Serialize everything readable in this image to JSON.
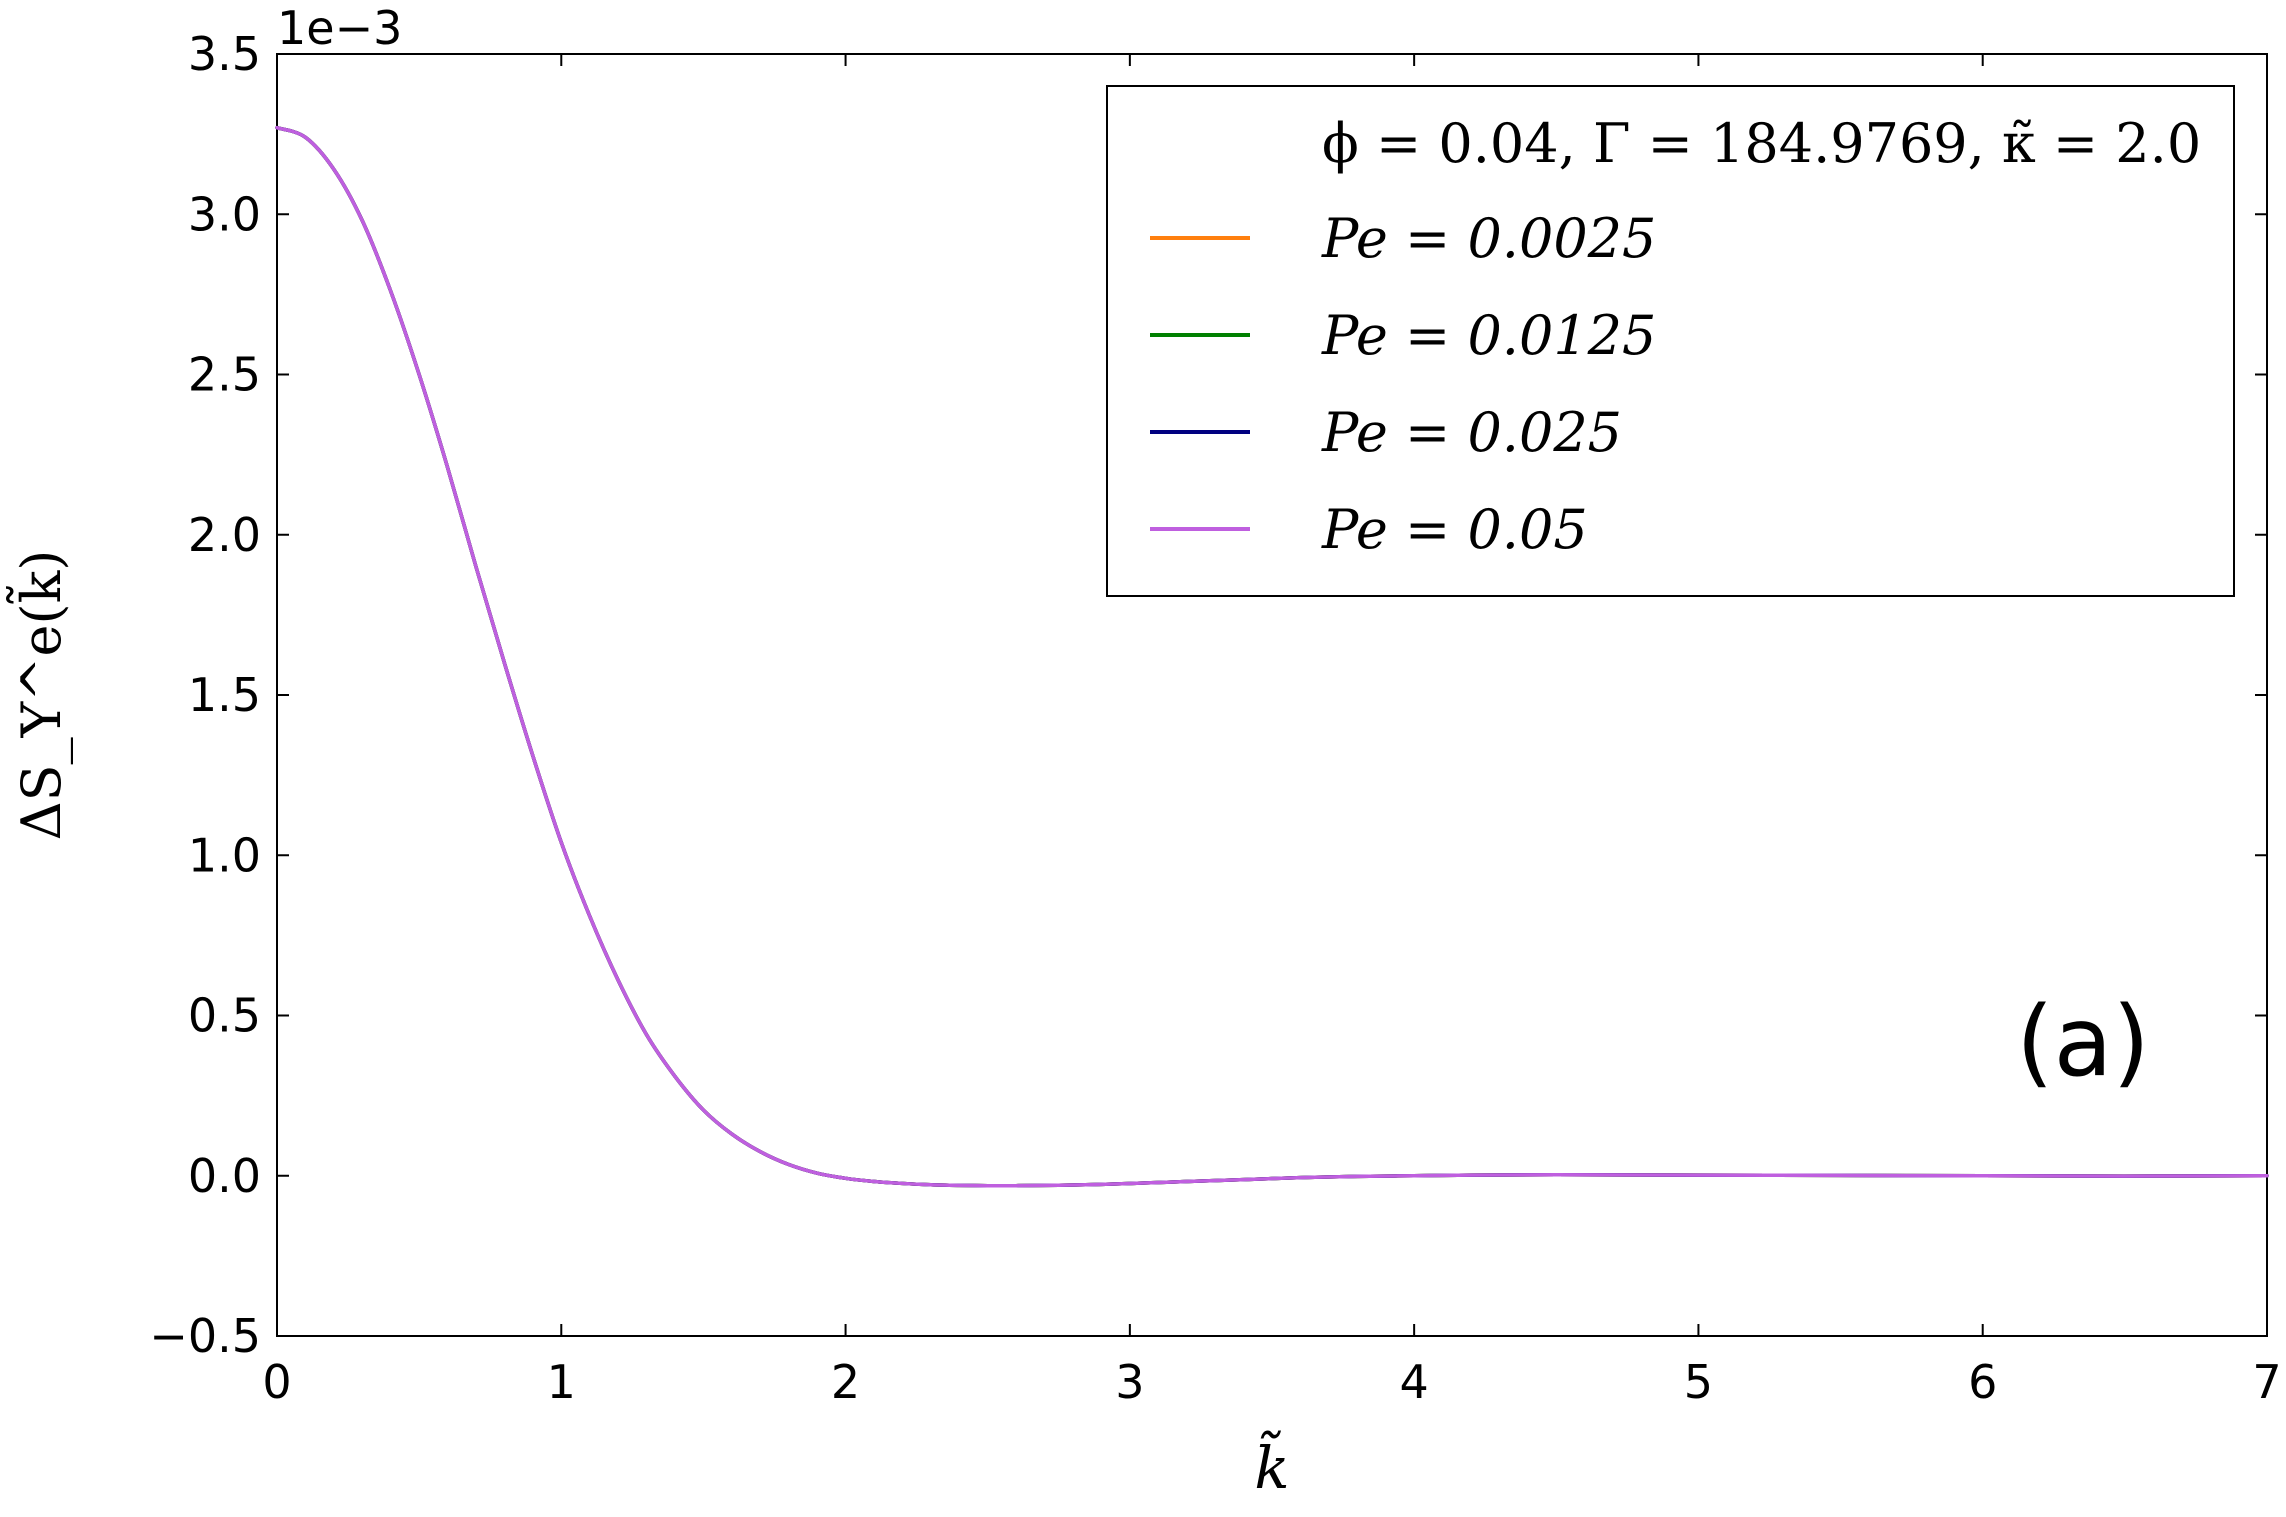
{
  "chart_data": {
    "type": "line",
    "panel_label": "(a)",
    "xlabel": "k̃",
    "ylabel": "ΔS_Y^e(k̃)",
    "y_offset_label": "1e−3",
    "xlim": [
      0,
      7
    ],
    "ylim": [
      -0.5,
      3.5
    ],
    "y_scale_note": "values in units of 1e-3",
    "x_ticks": [
      "0",
      "1",
      "2",
      "3",
      "4",
      "5",
      "6",
      "7"
    ],
    "y_ticks": [
      "−0.5",
      "0.0",
      "0.5",
      "1.0",
      "1.5",
      "2.0",
      "2.5",
      "3.0",
      "3.5"
    ],
    "grid": false,
    "legend": {
      "placement": "top-right",
      "title": "ϕ = 0.04, Γ = 184.9769, κ̃ = 2.0",
      "entries": [
        "Pe = 0.0025",
        "Pe = 0.0125",
        "Pe = 0.025",
        "Pe = 0.05"
      ]
    },
    "x": [
      0.0,
      0.1,
      0.2,
      0.3,
      0.4,
      0.5,
      0.6,
      0.7,
      0.8,
      0.9,
      1.0,
      1.1,
      1.2,
      1.3,
      1.4,
      1.5,
      1.6,
      1.7,
      1.8,
      1.9,
      2.0,
      2.1,
      2.2,
      2.3,
      2.4,
      2.5,
      2.6,
      2.7,
      2.8,
      2.9,
      3.0,
      3.2,
      3.4,
      3.6,
      3.8,
      4.0,
      4.2,
      4.5,
      5.0,
      5.5,
      6.0,
      6.5,
      7.0
    ],
    "series": [
      {
        "name": "Pe = 0.0025",
        "color": "#ff7f0e",
        "values": [
          3.27,
          3.24,
          3.14,
          2.98,
          2.76,
          2.5,
          2.21,
          1.9,
          1.6,
          1.31,
          1.04,
          0.81,
          0.61,
          0.44,
          0.31,
          0.205,
          0.13,
          0.075,
          0.035,
          0.008,
          -0.008,
          -0.018,
          -0.024,
          -0.028,
          -0.03,
          -0.031,
          -0.031,
          -0.03,
          -0.029,
          -0.027,
          -0.024,
          -0.018,
          -0.012,
          -0.006,
          -0.002,
          0.0,
          0.002,
          0.003,
          0.002,
          0.001,
          0.0,
          -0.001,
          0.0
        ]
      },
      {
        "name": "Pe = 0.0125",
        "color": "#008000",
        "values": [
          3.27,
          3.24,
          3.14,
          2.98,
          2.76,
          2.5,
          2.21,
          1.9,
          1.6,
          1.31,
          1.04,
          0.81,
          0.61,
          0.44,
          0.31,
          0.205,
          0.13,
          0.075,
          0.035,
          0.008,
          -0.008,
          -0.018,
          -0.024,
          -0.028,
          -0.03,
          -0.031,
          -0.031,
          -0.03,
          -0.029,
          -0.027,
          -0.024,
          -0.018,
          -0.012,
          -0.006,
          -0.002,
          0.0,
          0.002,
          0.003,
          0.002,
          0.001,
          0.0,
          -0.001,
          0.0
        ]
      },
      {
        "name": "Pe = 0.025",
        "color": "#000080",
        "values": [
          3.27,
          3.24,
          3.14,
          2.98,
          2.76,
          2.5,
          2.21,
          1.9,
          1.6,
          1.31,
          1.04,
          0.81,
          0.61,
          0.44,
          0.31,
          0.205,
          0.13,
          0.075,
          0.035,
          0.008,
          -0.008,
          -0.018,
          -0.024,
          -0.028,
          -0.03,
          -0.031,
          -0.031,
          -0.03,
          -0.029,
          -0.027,
          -0.024,
          -0.018,
          -0.012,
          -0.006,
          -0.002,
          0.0,
          0.002,
          0.003,
          0.002,
          0.001,
          0.0,
          -0.001,
          0.0
        ]
      },
      {
        "name": "Pe = 0.05",
        "color": "#bf5fdf",
        "values": [
          3.27,
          3.24,
          3.14,
          2.98,
          2.76,
          2.5,
          2.21,
          1.9,
          1.6,
          1.31,
          1.04,
          0.81,
          0.61,
          0.44,
          0.31,
          0.205,
          0.13,
          0.075,
          0.035,
          0.008,
          -0.008,
          -0.018,
          -0.024,
          -0.028,
          -0.03,
          -0.031,
          -0.031,
          -0.03,
          -0.029,
          -0.027,
          -0.024,
          -0.018,
          -0.012,
          -0.006,
          -0.002,
          0.0,
          0.002,
          0.003,
          0.002,
          0.001,
          0.0,
          -0.001,
          0.0
        ]
      }
    ]
  }
}
